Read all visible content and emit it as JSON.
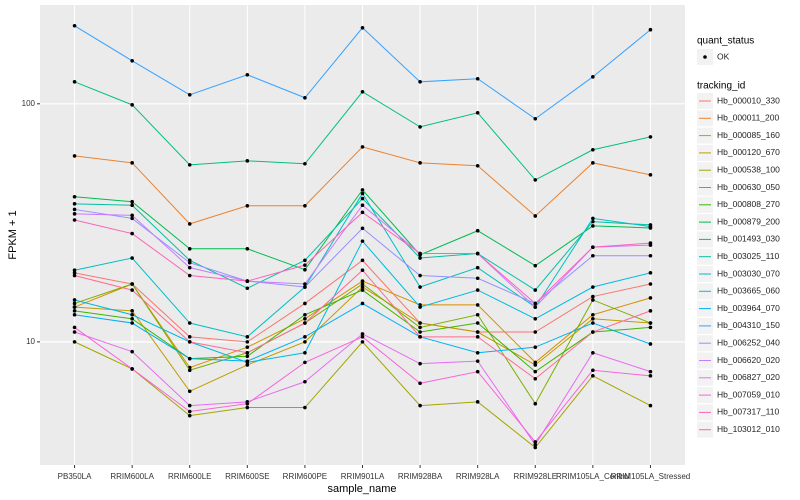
{
  "chart_data": {
    "type": "line",
    "x_label": "sample_name",
    "y_label": "FPKM + 1",
    "log_y": true,
    "grid": true,
    "legend_position": "right",
    "point_legend": {
      "title": "quant_status",
      "label": "OK"
    },
    "legend_title": "tracking_id",
    "ylim": [
      3.04,
      260
    ],
    "yticks": [
      10,
      100
    ],
    "categories": [
      "PB350LA",
      "RRIM600LA",
      "RRIM600LE",
      "RRIM600SE",
      "RRIM600PE",
      "RRIM901LA",
      "RRIM928BA",
      "RRIM928LA",
      "RRIM928LE",
      "RRIM105LA_Control",
      "RRIM105LA_Stressed"
    ],
    "series": [
      {
        "name": "Hb_000010_330",
        "color": "#F8766D",
        "values": [
          19.5,
          17.5,
          10.5,
          10,
          14.5,
          22,
          12,
          11,
          11,
          15.5,
          17.5
        ]
      },
      {
        "name": "Hb_000011_200",
        "color": "#EA8331",
        "values": [
          60.4,
          56.5,
          31.3,
          37.3,
          37.3,
          65.9,
          56.5,
          54.9,
          33.8,
          56.5,
          50.3
        ]
      },
      {
        "name": "Hb_000085_160",
        "color": "#D89000",
        "values": [
          14,
          17.5,
          7.8,
          9.5,
          12.5,
          18,
          14.3,
          14.3,
          8.2,
          13,
          15.3
        ]
      },
      {
        "name": "Hb_000120_670",
        "color": "#C09B00",
        "values": [
          14,
          13.5,
          6.2,
          8,
          10,
          17,
          12,
          11,
          8,
          12.5,
          12
        ]
      },
      {
        "name": "Hb_000538_100",
        "color": "#A3A500",
        "values": [
          10,
          7.7,
          4.9,
          5.3,
          5.3,
          10,
          5.4,
          5.6,
          3.6,
          7.2,
          5.4
        ]
      },
      {
        "name": "Hb_000630_050",
        "color": "#7CAE00",
        "values": [
          14.5,
          17.5,
          7.6,
          9,
          12,
          17.5,
          11.5,
          13,
          5.5,
          15,
          12
        ]
      },
      {
        "name": "Hb_000808_270",
        "color": "#39B600",
        "values": [
          13.5,
          12.5,
          8.5,
          8.7,
          13,
          16.5,
          11,
          12,
          7.5,
          11,
          11.5
        ]
      },
      {
        "name": "Hb_000879_200",
        "color": "#00BB4E",
        "values": [
          40.7,
          38.8,
          24.6,
          24.6,
          20.1,
          43.5,
          23.2,
          29.3,
          20.9,
          30.7,
          30.1
        ]
      },
      {
        "name": "Hb_001493_030",
        "color": "#00BF7D",
        "values": [
          123.7,
          99,
          55.4,
          57.6,
          56,
          112.3,
          80,
          91.7,
          47.9,
          64.1,
          72.6
        ]
      },
      {
        "name": "Hb_003025_110",
        "color": "#00C1A3",
        "values": [
          38,
          37.5,
          22,
          16.8,
          22,
          40,
          22.5,
          23.5,
          16.5,
          32,
          31
        ]
      },
      {
        "name": "Hb_003030_070",
        "color": "#00BFC4",
        "values": [
          20,
          22.5,
          12,
          10.5,
          17,
          42,
          17,
          20.5,
          14,
          33,
          30.5
        ]
      },
      {
        "name": "Hb_003665_060",
        "color": "#00BAE0",
        "values": [
          15,
          13,
          10,
          8.2,
          9,
          26.5,
          14,
          16.5,
          12.5,
          17,
          19.5
        ]
      },
      {
        "name": "Hb_003964_070",
        "color": "#00B0F6",
        "values": [
          13,
          12,
          8.5,
          8.3,
          10.5,
          14.5,
          10.5,
          9,
          9.5,
          12,
          9.8
        ]
      },
      {
        "name": "Hb_004310_150",
        "color": "#35A2FF",
        "values": [
          212.7,
          151.6,
          109.1,
          132.4,
          106,
          208.6,
          123.7,
          127.4,
          86.5,
          129.8,
          204.7
        ]
      },
      {
        "name": "Hb_006252_040",
        "color": "#9590FF",
        "values": [
          36,
          33,
          21.5,
          18,
          17,
          30,
          19,
          18.5,
          14.5,
          23,
          23
        ]
      },
      {
        "name": "Hb_006620_020",
        "color": "#C77CFF",
        "values": [
          34.5,
          34,
          20.5,
          18,
          17.5,
          37.5,
          23.5,
          23.5,
          14,
          25,
          25.5
        ]
      },
      {
        "name": "Hb_006827_020",
        "color": "#E76BF3",
        "values": [
          11,
          9.1,
          5.4,
          5.6,
          6.8,
          10.8,
          8.1,
          8.3,
          3.7,
          9,
          7.5
        ]
      },
      {
        "name": "Hb_007059_010",
        "color": "#FA62DB",
        "values": [
          11.5,
          7.7,
          5.1,
          5.5,
          8.2,
          10.5,
          6.7,
          7.5,
          3.8,
          7.6,
          7.2
        ]
      },
      {
        "name": "Hb_007317_110",
        "color": "#FF62BC",
        "values": [
          32.5,
          28.5,
          19,
          18,
          21,
          35,
          23.5,
          23.5,
          14.5,
          25,
          26
        ]
      },
      {
        "name": "Hb_103012_010",
        "color": "#FF6C91",
        "values": [
          19,
          16.5,
          10,
          9,
          12,
          20,
          10.5,
          10.5,
          7,
          11,
          13.5
        ]
      }
    ]
  }
}
